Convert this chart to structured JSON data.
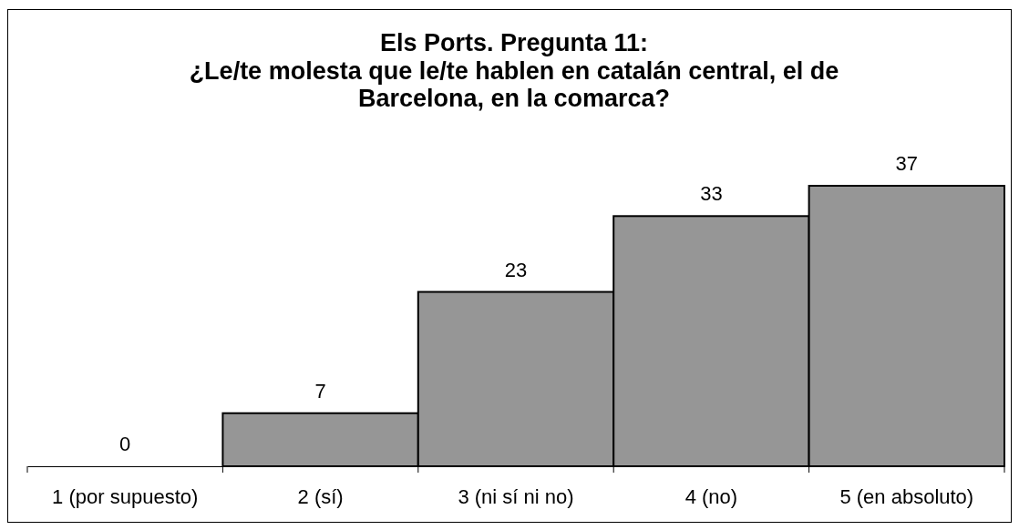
{
  "chart_data": {
    "type": "bar",
    "title": "Els Ports. Pregunta 11:",
    "subtitle": "¿Le/te molesta que le/te hablen en catalán central, el de Barcelona, en la comarca?",
    "categories": [
      "1 (por supuesto)",
      "2 (sí)",
      "3 (ni sí ni no)",
      "4 (no)",
      "5 (en absoluto)"
    ],
    "values": [
      0,
      7,
      23,
      33,
      37
    ],
    "color": "#969696",
    "data_labels": true
  }
}
